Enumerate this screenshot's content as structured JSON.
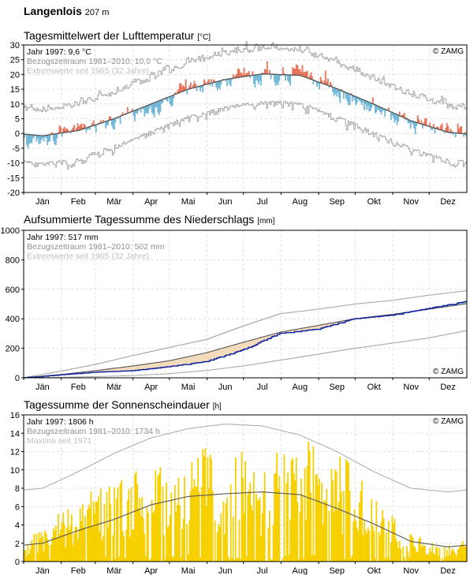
{
  "station": {
    "name": "Langenlois",
    "elevation": "207 m"
  },
  "colors": {
    "warm": "#e8735a",
    "warm_dark": "#b22a2a",
    "cold": "#74b8d8",
    "cold_dark": "#2a78a8",
    "ref": "#555555",
    "extreme": "#a8a8a8",
    "precip_line": "#0a1fa0",
    "precip_excess": "#b8dcd8",
    "precip_deficit": "#f3dcbc",
    "sun": "#f7d000"
  },
  "chart_data": [
    {
      "type": "line",
      "title": "Tagesmittelwert der Lufttemperatur",
      "unit": "[°C]",
      "ylim": [
        -20,
        30
      ],
      "yticks": [
        -20,
        -15,
        -10,
        -5,
        0,
        5,
        10,
        15,
        20,
        25,
        30
      ],
      "categories": [
        "Jän",
        "Feb",
        "Mär",
        "Apr",
        "Mai",
        "Jun",
        "Jul",
        "Aug",
        "Sep",
        "Okt",
        "Nov",
        "Dez"
      ],
      "legend": [
        "Jahr 1997: 9,6 °C",
        "Bezugszeitraum 1981–2010: 10,0 °C",
        "Extremwerte seit 1965 (32 Jahre)"
      ],
      "credit": "© ZAMG",
      "grid": true,
      "monthly": {
        "reference_mean": [
          -0.8,
          1.0,
          5.0,
          10.0,
          15.0,
          18.3,
          20.2,
          19.7,
          15.2,
          9.9,
          4.3,
          0.4
        ],
        "observed_1997": [
          -1.5,
          2.6,
          5.0,
          9.0,
          16.0,
          19.0,
          19.4,
          20.0,
          15.6,
          7.6,
          3.8,
          1.4
        ]
      }
    },
    {
      "type": "line",
      "title": "Aufsummierte Tagessumme des Niederschlags",
      "unit": "[mm]",
      "ylim": [
        0,
        1000
      ],
      "yticks": [
        0,
        200,
        400,
        600,
        800,
        1000
      ],
      "categories": [
        "Jän",
        "Feb",
        "Mär",
        "Apr",
        "Mai",
        "Jun",
        "Jul",
        "Aug",
        "Sep",
        "Okt",
        "Nov",
        "Dez"
      ],
      "legend": [
        "Jahr 1997: 517 mm",
        "Bezugszeitraum 1981–2010: 502 mm",
        "Extremwerte seit 1965 (32 Jahre)"
      ],
      "credit": "© ZAMG",
      "grid": true,
      "cumulative_month_end": {
        "observed_1997": [
          20,
          38,
          48,
          75,
          110,
          188,
          302,
          330,
          400,
          425,
          470,
          517
        ],
        "reference": [
          22,
          48,
          80,
          115,
          170,
          240,
          310,
          355,
          400,
          430,
          465,
          502
        ],
        "max_envelope": [
          45,
          90,
          150,
          205,
          260,
          350,
          435,
          465,
          500,
          525,
          560,
          590
        ],
        "min_envelope": [
          3,
          8,
          15,
          28,
          50,
          80,
          120,
          160,
          200,
          235,
          270,
          320
        ]
      }
    },
    {
      "type": "bar",
      "title": "Tagessumme der Sonnenscheindauer",
      "unit": "[h]",
      "ylim": [
        0,
        16
      ],
      "yticks": [
        0,
        2,
        4,
        6,
        8,
        10,
        12,
        14,
        16
      ],
      "categories": [
        "Jän",
        "Feb",
        "Mär",
        "Apr",
        "Mai",
        "Jun",
        "Jul",
        "Aug",
        "Sep",
        "Okt",
        "Nov",
        "Dez"
      ],
      "legend": [
        "Jahr 1997: 1806 h",
        "Bezugszeitraum 1981–2010: 1734 h",
        "Maxima seit 1971"
      ],
      "credit": "© ZAMG",
      "grid": true,
      "monthly": {
        "daily_max": [
          8.0,
          9.8,
          11.8,
          13.5,
          14.5,
          15.0,
          14.8,
          13.8,
          12.0,
          9.8,
          8.0,
          7.6
        ],
        "reference_mean": [
          2.0,
          3.4,
          4.6,
          6.2,
          7.1,
          7.4,
          7.6,
          7.3,
          5.8,
          4.1,
          2.2,
          1.6
        ],
        "observed_1997_mean": [
          2.0,
          4.5,
          5.5,
          6.0,
          7.5,
          7.4,
          6.8,
          8.2,
          7.5,
          4.2,
          1.8,
          1.1
        ]
      }
    }
  ]
}
